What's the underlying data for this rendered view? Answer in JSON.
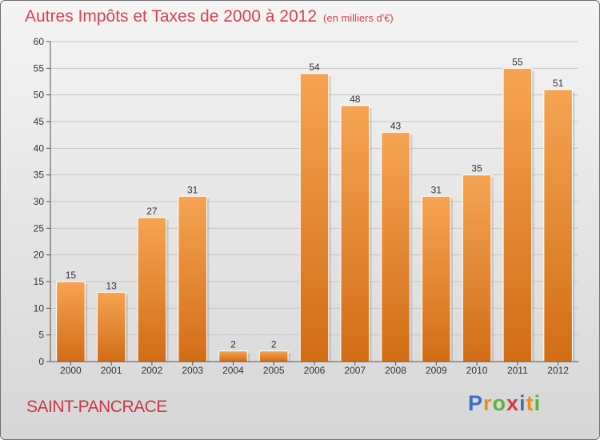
{
  "title": "Autres Impôts et Taxes de 2000 à 2012",
  "subtitle": "(en milliers d'€)",
  "commune": "SAINT-PANCRACE",
  "logo": {
    "letters": [
      "P",
      "r",
      "o",
      "x",
      "i",
      "t",
      "i"
    ]
  },
  "colors": {
    "bar_top": "#f6a452",
    "bar_bottom": "#d26d16",
    "title": "#d8434e"
  },
  "chart_data": {
    "type": "bar",
    "categories": [
      "2000",
      "2001",
      "2002",
      "2003",
      "2004",
      "2005",
      "2006",
      "2007",
      "2008",
      "2009",
      "2010",
      "2011",
      "2012"
    ],
    "values": [
      15,
      13,
      27,
      31,
      2,
      2,
      54,
      48,
      43,
      31,
      35,
      55,
      51
    ],
    "ylim": [
      0,
      60
    ],
    "yticks": [
      0,
      5,
      10,
      15,
      20,
      25,
      30,
      35,
      40,
      45,
      50,
      55,
      60
    ],
    "grid": true
  }
}
